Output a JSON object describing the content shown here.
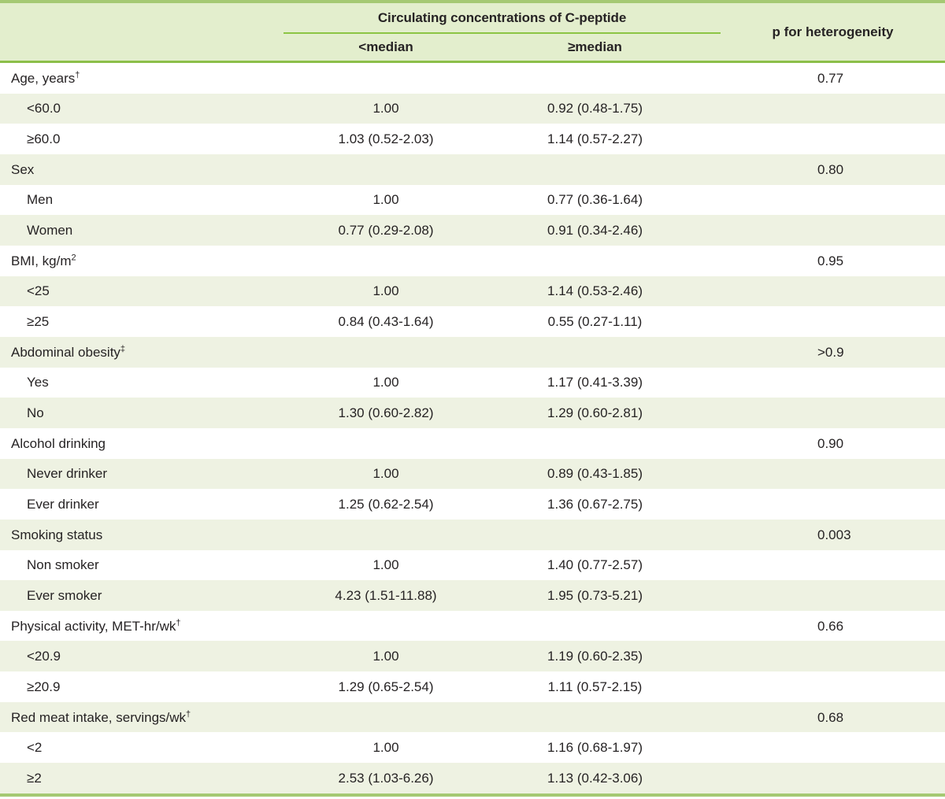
{
  "header": {
    "group_title": "Circulating concentrations of C-peptide",
    "col_below_median": "<median",
    "col_above_median": "≥median",
    "col_p": "p for heterogeneity"
  },
  "rows": [
    {
      "label": "Age, years",
      "sup": "†",
      "indent": false,
      "below_median": "",
      "above_median": "",
      "p": "0.77"
    },
    {
      "label": "<60.0",
      "sup": "",
      "indent": true,
      "below_median": "1.00",
      "above_median": "0.92 (0.48-1.75)",
      "p": ""
    },
    {
      "label": "≥60.0",
      "sup": "",
      "indent": true,
      "below_median": "1.03 (0.52-2.03)",
      "above_median": "1.14 (0.57-2.27)",
      "p": ""
    },
    {
      "label": "Sex",
      "sup": "",
      "indent": false,
      "below_median": "",
      "above_median": "",
      "p": "0.80"
    },
    {
      "label": "Men",
      "sup": "",
      "indent": true,
      "below_median": "1.00",
      "above_median": "0.77 (0.36-1.64)",
      "p": ""
    },
    {
      "label": "Women",
      "sup": "",
      "indent": true,
      "below_median": "0.77 (0.29-2.08)",
      "above_median": "0.91 (0.34-2.46)",
      "p": ""
    },
    {
      "label": "BMI, kg/m",
      "sup": "2",
      "indent": false,
      "below_median": "",
      "above_median": "",
      "p": "0.95"
    },
    {
      "label": "<25",
      "sup": "",
      "indent": true,
      "below_median": "1.00",
      "above_median": "1.14 (0.53-2.46)",
      "p": ""
    },
    {
      "label": "≥25",
      "sup": "",
      "indent": true,
      "below_median": "0.84 (0.43-1.64)",
      "above_median": "0.55 (0.27-1.11)",
      "p": ""
    },
    {
      "label": "Abdominal obesity",
      "sup": "‡",
      "indent": false,
      "below_median": "",
      "above_median": "",
      "p": ">0.9"
    },
    {
      "label": "Yes",
      "sup": "",
      "indent": true,
      "below_median": "1.00",
      "above_median": "1.17 (0.41-3.39)",
      "p": ""
    },
    {
      "label": "No",
      "sup": "",
      "indent": true,
      "below_median": "1.30 (0.60-2.82)",
      "above_median": "1.29 (0.60-2.81)",
      "p": ""
    },
    {
      "label": "Alcohol drinking",
      "sup": "",
      "indent": false,
      "below_median": "",
      "above_median": "",
      "p": "0.90"
    },
    {
      "label": "Never drinker",
      "sup": "",
      "indent": true,
      "below_median": "1.00",
      "above_median": "0.89 (0.43-1.85)",
      "p": ""
    },
    {
      "label": "Ever drinker",
      "sup": "",
      "indent": true,
      "below_median": "1.25 (0.62-2.54)",
      "above_median": "1.36 (0.67-2.75)",
      "p": ""
    },
    {
      "label": "Smoking status",
      "sup": "",
      "indent": false,
      "below_median": "",
      "above_median": "",
      "p": "0.003"
    },
    {
      "label": "Non smoker",
      "sup": "",
      "indent": true,
      "below_median": "1.00",
      "above_median": "1.40 (0.77-2.57)",
      "p": ""
    },
    {
      "label": "Ever smoker",
      "sup": "",
      "indent": true,
      "below_median": "4.23 (1.51-11.88)",
      "above_median": "1.95 (0.73-5.21)",
      "p": ""
    },
    {
      "label": "Physical activity, MET-hr/wk",
      "sup": "†",
      "indent": false,
      "below_median": "",
      "above_median": "",
      "p": "0.66"
    },
    {
      "label": "<20.9",
      "sup": "",
      "indent": true,
      "below_median": "1.00",
      "above_median": "1.19 (0.60-2.35)",
      "p": ""
    },
    {
      "label": "≥20.9",
      "sup": "",
      "indent": true,
      "below_median": "1.29 (0.65-2.54)",
      "above_median": "1.11 (0.57-2.15)",
      "p": ""
    },
    {
      "label": "Red meat intake, servings/wk",
      "sup": "†",
      "indent": false,
      "below_median": "",
      "above_median": "",
      "p": "0.68"
    },
    {
      "label": "<2",
      "sup": "",
      "indent": true,
      "below_median": "1.00",
      "above_median": "1.16 (0.68-1.97)",
      "p": ""
    },
    {
      "label": "≥2",
      "sup": "",
      "indent": true,
      "below_median": "2.53 (1.03-6.26)",
      "above_median": "1.13 (0.42-3.06)",
      "p": ""
    }
  ],
  "colors": {
    "header_bg": "#e3eecd",
    "row_alt_bg": "#eef2e2",
    "border_green": "#a5c973",
    "rule_green": "#8cc544",
    "separator_green": "#8cbf4a",
    "text": "#262324"
  }
}
